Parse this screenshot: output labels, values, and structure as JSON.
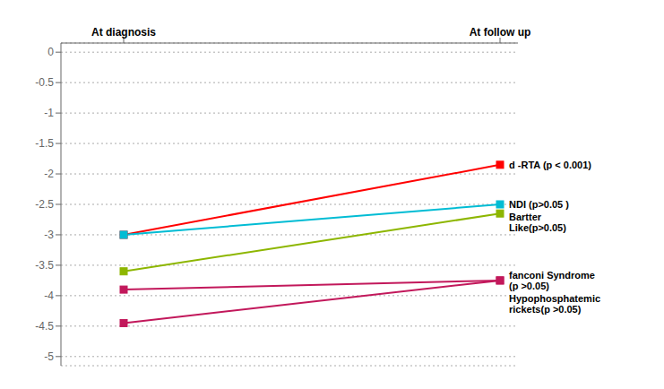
{
  "chart_data": {
    "type": "line",
    "categories": [
      "At diagnosis",
      "At follow up"
    ],
    "series": [
      {
        "name": "d -RTA (p < 0.001)",
        "color": "#ff0000",
        "marker": "square",
        "values": [
          -3.0,
          -1.85
        ]
      },
      {
        "name": "NDI (p>0.05 )",
        "color": "#00bcd4",
        "marker": "square",
        "values": [
          -3.0,
          -2.5
        ]
      },
      {
        "name": "Bartter\nLike(p>0.05)",
        "color": "#8db600",
        "marker": "square",
        "values": [
          -3.6,
          -2.65
        ]
      },
      {
        "name": "fanconi Syndrome\n(p >0.05)",
        "color": "#c2185b",
        "marker": "square",
        "values": [
          -3.9,
          -3.75
        ]
      },
      {
        "name": "Hypophosphatemic\nrickets(p >0.05)",
        "color": "#c2185b",
        "marker": "square",
        "values": [
          -4.45,
          -3.75
        ]
      }
    ],
    "ylim": [
      -5.15,
      0.15
    ],
    "yticks": [
      0,
      -0.5,
      -1,
      -1.5,
      -2,
      -2.5,
      -3,
      -3.5,
      -4,
      -4.5,
      -5
    ],
    "grid": true
  }
}
